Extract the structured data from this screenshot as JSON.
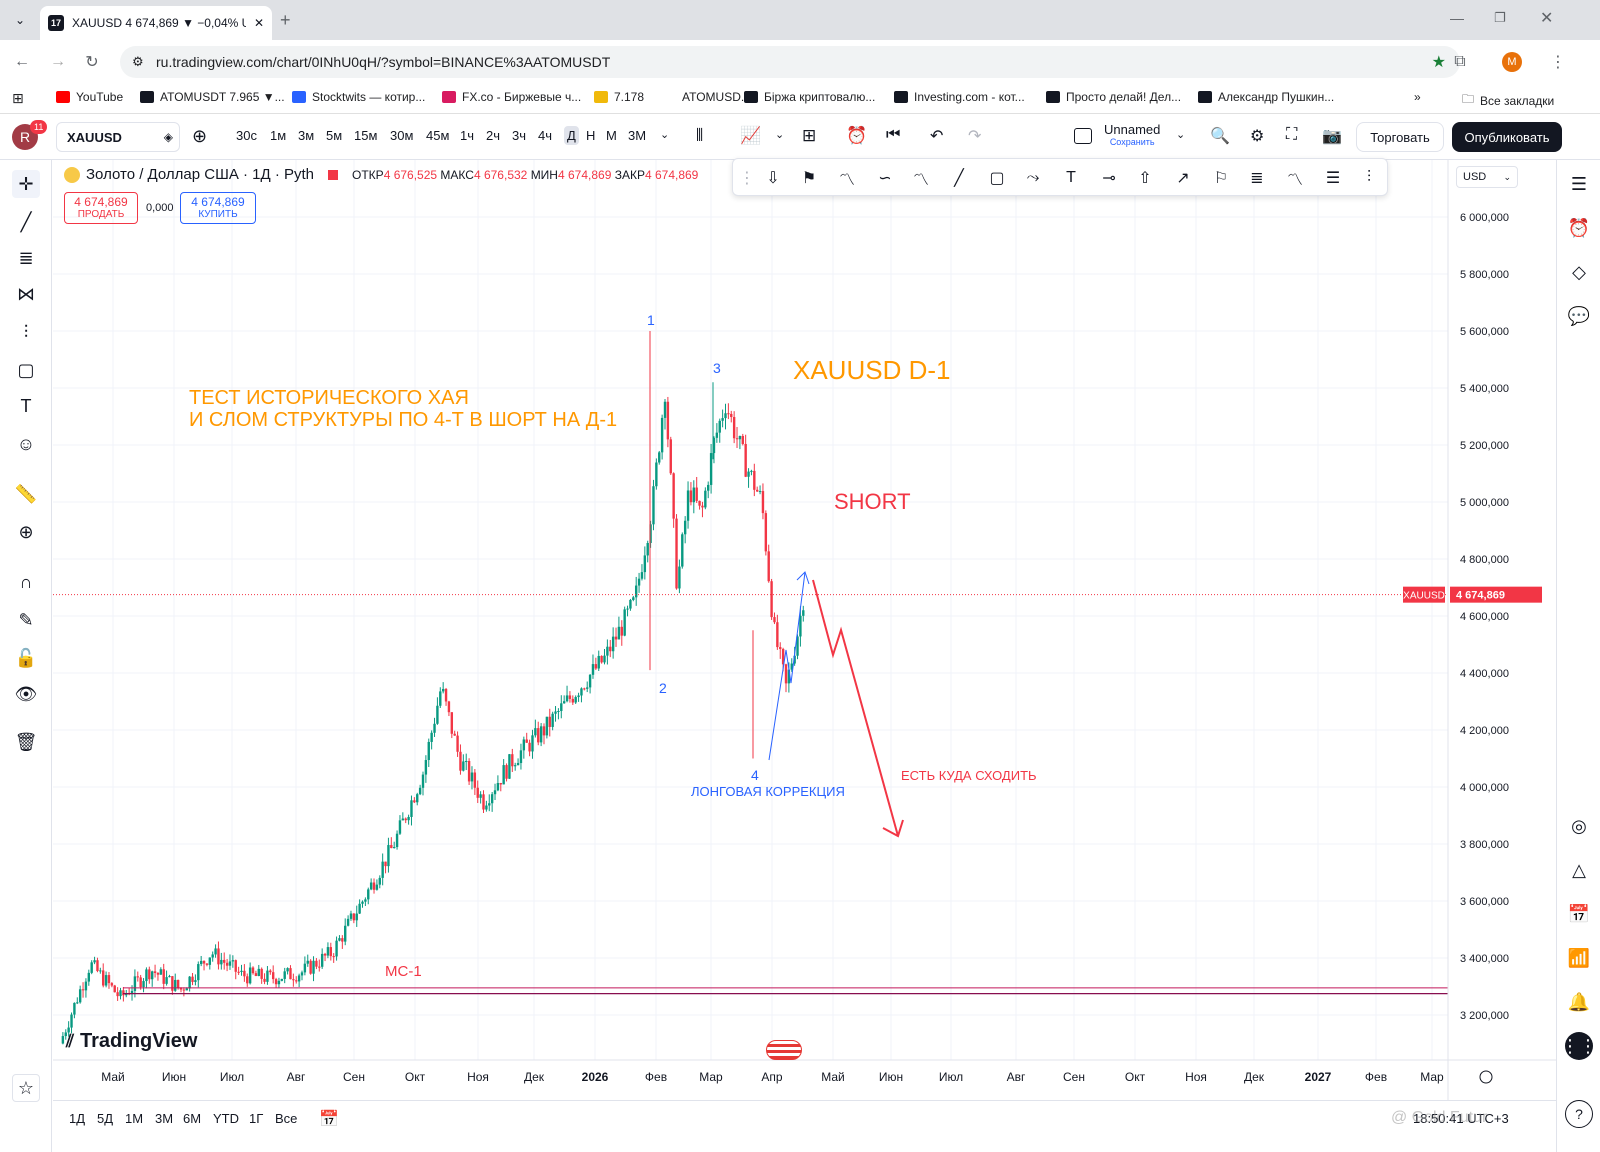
{
  "browser": {
    "tab_title": "XAUUSD 4 674,869 ▼ −0,04% U",
    "url": "ru.tradingview.com/chart/0INhU0qH/?symbol=BINANCE%3AATOMUSDT",
    "profile_initial": "M",
    "bookmarks": [
      {
        "label": "YouTube",
        "color": "#ff0000"
      },
      {
        "label": "ATOMUSDT 7.965 ▼...",
        "color": "#131722"
      },
      {
        "label": "Stocktwits — котир...",
        "color": "#2962ff"
      },
      {
        "label": "FX.co - Биржевые ч...",
        "color": "#d81b60"
      },
      {
        "label": "7.178",
        "color": "#f0b90b"
      },
      {
        "label": "ATOMUSD...",
        "color": "#ffffff"
      },
      {
        "label": "Біржа криптовалю...",
        "color": "#131722"
      },
      {
        "label": "Investing.com - кот...",
        "color": "#131722"
      },
      {
        "label": "Просто делай! Дел...",
        "color": "#131722"
      },
      {
        "label": "Александр Пушкин...",
        "color": "#131722"
      }
    ],
    "all_bookmarks": "Все закладки"
  },
  "toolbar": {
    "avatar_initial": "R",
    "notif_count": "11",
    "symbol": "XAUUSD",
    "timeframes": [
      "30с",
      "1м",
      "3м",
      "5м",
      "15м",
      "30м",
      "45м",
      "1ч",
      "2ч",
      "3ч",
      "4ч",
      "Д",
      "Н",
      "М",
      "3М"
    ],
    "active_timeframe": "Д",
    "layout_name": "Unnamed",
    "layout_status": "Сохранить",
    "trade_label": "Торговать",
    "publish_label": "Опубликовать"
  },
  "legend": {
    "name": "Золото / Доллар США · 1Д · Pyth",
    "open_label": "ОТКР",
    "open": "4 676,525",
    "high_label": "МАКС",
    "high": "4 676,532",
    "low_label": "МИН",
    "low": "4 674,869",
    "close_label": "ЗАКР",
    "close": "4 674,869",
    "sell_price": "4 674,869",
    "sell_label": "ПРОДАТЬ",
    "spread": "0,000",
    "buy_price": "4 674,869",
    "buy_label": "КУПИТЬ"
  },
  "chart_data": {
    "type": "candlestick",
    "currency": "USD",
    "current_price_label": "4 674,869",
    "symbol_tag": "XAUUSD",
    "current_price": 4674.869,
    "y_ticks": [
      "6 000,000",
      "5 800,000",
      "5 600,000",
      "5 400,000",
      "5 200,000",
      "5 000,000",
      "4 800,000",
      "4 600,000",
      "4 400,000",
      "4 200,000",
      "4 000,000",
      "3 800,000",
      "3 600,000",
      "3 400,000",
      "3 200,000"
    ],
    "x_ticks": [
      "Май",
      "Июн",
      "Июл",
      "Авг",
      "Сен",
      "Окт",
      "Ноя",
      "Дек",
      "2026",
      "Фев",
      "Мар",
      "Апр",
      "Май",
      "Июн",
      "Июл",
      "Авг",
      "Сен",
      "Окт",
      "Ноя",
      "Дек",
      "2027",
      "Фев",
      "Мар"
    ],
    "price_path": [
      [
        0,
        3100
      ],
      [
        0.5,
        3380
      ],
      [
        1,
        3260
      ],
      [
        1.5,
        3360
      ],
      [
        2,
        3290
      ],
      [
        2.5,
        3420
      ],
      [
        3,
        3340
      ],
      [
        3.5,
        3330
      ],
      [
        4,
        3350
      ],
      [
        4.5,
        3420
      ],
      [
        5,
        3600
      ],
      [
        5.5,
        3790
      ],
      [
        6,
        4050
      ],
      [
        6.3,
        4350
      ],
      [
        6.6,
        4100
      ],
      [
        7,
        3950
      ],
      [
        7.5,
        4100
      ],
      [
        8,
        4200
      ],
      [
        8.5,
        4330
      ],
      [
        9,
        4450
      ],
      [
        9.5,
        4650
      ],
      [
        9.8,
        5000
      ],
      [
        10,
        5400
      ],
      [
        10.2,
        4700
      ],
      [
        10.4,
        5050
      ],
      [
        10.6,
        4950
      ],
      [
        10.8,
        5200
      ],
      [
        11,
        5350
      ],
      [
        11.3,
        5150
      ],
      [
        11.6,
        5000
      ],
      [
        11.8,
        4550
      ],
      [
        12,
        4350
      ],
      [
        12.2,
        4550
      ],
      [
        12.3,
        4680
      ]
    ],
    "annotations": {
      "main_text_line1": "ТЕСТ ИСТОРИЧЕСКОГО ХАЯ",
      "main_text_line2": "И СЛОМ СТРУКТУРЫ ПО 4-Т В ШОРТ НА Д-1",
      "title": "XAUUSD D-1",
      "short_label": "SHORT",
      "wave1": "1",
      "wave2": "2",
      "wave3": "3",
      "wave4": "4",
      "long_correction": "ЛОНГОВАЯ КОРРЕКЦИЯ",
      "target_text": "ЕСТЬ КУДА СХОДИТЬ",
      "level_label": "MC-1"
    }
  },
  "brand": "TradingView",
  "bottom": {
    "ranges": [
      "1Д",
      "5Д",
      "1М",
      "3М",
      "6М",
      "YTD",
      "1Г",
      "Все"
    ],
    "clock": "18:50:41 UTC+3",
    "watermark": "@ Gold Futur"
  }
}
